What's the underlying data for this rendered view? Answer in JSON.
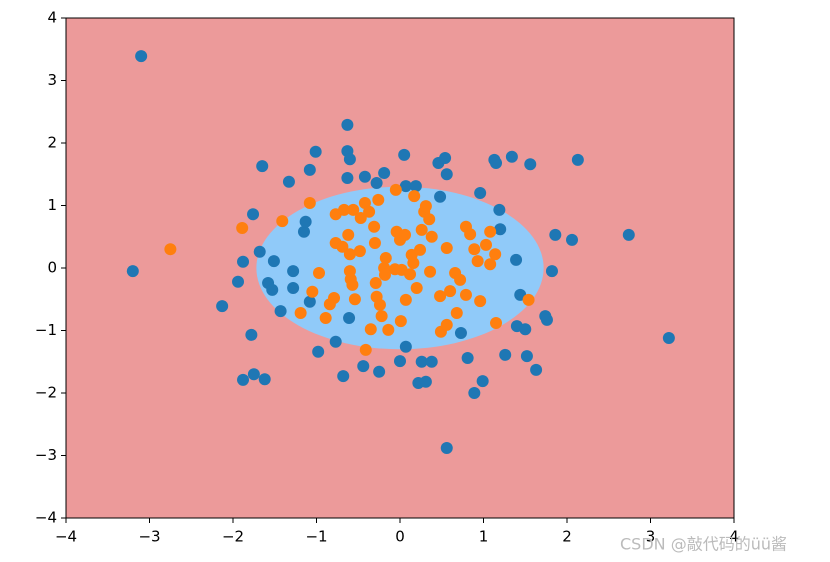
{
  "chart_data": {
    "type": "scatter",
    "xlim": [
      -4,
      4
    ],
    "ylim": [
      -4,
      4
    ],
    "xticks": [
      {
        "value": -4,
        "label": "−4"
      },
      {
        "value": -3,
        "label": "−3"
      },
      {
        "value": -2,
        "label": "−2"
      },
      {
        "value": -1,
        "label": "−1"
      },
      0,
      1,
      2,
      3,
      4
    ],
    "yticks": [
      {
        "value": -4,
        "label": "−4"
      },
      {
        "value": -3,
        "label": "−3"
      },
      {
        "value": -2,
        "label": "−2"
      },
      {
        "value": -1,
        "label": "−1"
      },
      0,
      1,
      2,
      3,
      4
    ],
    "background_color": "#ec9a9a",
    "boundary": {
      "cx": 0,
      "cy": 0,
      "rx": 1.72,
      "ry": 1.3,
      "color": "#90caf9"
    },
    "series": [
      {
        "color": "#1f77b4",
        "x": [
          -3.1,
          -3.2,
          -2.13,
          -1.94,
          -1.88,
          -1.76,
          -1.65,
          -1.68,
          -1.58,
          -1.53,
          -1.51,
          -1.43,
          -1.78,
          -1.88,
          -1.75,
          -1.62,
          -1.33,
          -1.28,
          -1.28,
          -1.15,
          -1.13,
          -1.08,
          -1.01,
          -1.08,
          -0.98,
          -0.77,
          -0.68,
          -0.63,
          -0.63,
          -0.6,
          -0.63,
          -0.61,
          -0.42,
          -0.28,
          -0.19,
          -0.44,
          -0.25,
          0.05,
          0.07,
          0.19,
          0.07,
          0.0,
          0.26,
          0.38,
          0.22,
          0.31,
          0.46,
          0.54,
          0.56,
          0.48,
          0.56,
          0.73,
          0.81,
          0.89,
          0.99,
          0.96,
          1.13,
          1.15,
          1.19,
          1.2,
          1.34,
          1.39,
          1.44,
          1.4,
          1.5,
          1.26,
          1.52,
          1.63,
          1.56,
          1.74,
          1.76,
          1.82,
          1.86,
          2.06,
          2.13,
          2.74,
          3.22
        ],
        "values": [
          3.39,
          -0.05,
          -0.61,
          -0.22,
          0.1,
          0.86,
          1.63,
          0.26,
          -0.24,
          -0.35,
          0.11,
          -0.69,
          -1.07,
          -1.79,
          -1.7,
          -1.78,
          1.38,
          -0.05,
          -0.32,
          0.58,
          0.74,
          1.57,
          1.86,
          -0.54,
          -1.34,
          -1.18,
          -1.73,
          2.29,
          1.87,
          1.74,
          1.44,
          -0.8,
          1.46,
          1.36,
          1.52,
          -1.57,
          -1.66,
          1.81,
          1.31,
          1.31,
          -1.26,
          -1.49,
          -1.5,
          -1.5,
          -1.84,
          -1.82,
          1.68,
          1.76,
          1.5,
          1.14,
          -2.88,
          -1.04,
          -1.44,
          -2.0,
          -1.81,
          1.2,
          1.73,
          1.68,
          0.93,
          0.62,
          1.78,
          0.13,
          -0.43,
          -0.93,
          -0.98,
          -1.39,
          -1.41,
          -1.63,
          1.66,
          -0.77,
          -0.83,
          -0.05,
          0.53,
          0.45,
          1.73,
          0.53,
          -1.12
        ]
      },
      {
        "color": "#ff7f0e",
        "x": [
          -2.75,
          -1.89,
          -1.41,
          -1.19,
          -1.08,
          -1.05,
          -0.97,
          -0.89,
          -0.84,
          -0.79,
          -0.77,
          -0.77,
          -0.69,
          -0.67,
          -0.6,
          -0.6,
          -0.59,
          -0.56,
          -0.54,
          -0.48,
          -0.47,
          -0.42,
          -0.41,
          -0.37,
          -0.35,
          -0.31,
          -0.3,
          -0.29,
          -0.28,
          -0.26,
          -0.24,
          -0.22,
          -0.19,
          -0.17,
          -0.14,
          -0.06,
          -0.05,
          -0.04,
          0.0,
          0.01,
          0.02,
          0.06,
          0.07,
          0.12,
          0.14,
          0.16,
          0.17,
          0.2,
          0.24,
          0.26,
          0.29,
          0.31,
          0.35,
          0.36,
          0.38,
          0.48,
          0.49,
          0.56,
          0.56,
          0.6,
          0.66,
          0.68,
          0.72,
          0.79,
          0.79,
          0.84,
          0.89,
          0.93,
          0.96,
          1.03,
          1.08,
          1.08,
          1.14,
          1.15,
          1.54,
          -0.62,
          -0.57,
          -0.18
        ],
        "values": [
          0.3,
          0.64,
          0.75,
          -0.72,
          1.04,
          -0.38,
          -0.08,
          -0.8,
          -0.58,
          -0.48,
          0.86,
          0.4,
          0.34,
          0.93,
          0.22,
          -0.05,
          -0.18,
          0.93,
          -0.5,
          0.27,
          0.8,
          1.04,
          -1.31,
          0.9,
          -0.98,
          0.66,
          0.4,
          -0.24,
          -0.46,
          1.09,
          -0.59,
          -0.77,
          0.0,
          0.16,
          -0.99,
          -0.02,
          1.25,
          0.58,
          0.45,
          -0.85,
          -0.03,
          0.53,
          -0.51,
          -0.1,
          0.21,
          0.08,
          1.15,
          -0.32,
          0.29,
          0.61,
          0.9,
          0.99,
          0.78,
          -0.06,
          0.5,
          -0.45,
          -1.02,
          0.32,
          -0.91,
          -0.37,
          -0.08,
          -0.72,
          -0.19,
          0.66,
          -0.43,
          0.54,
          0.3,
          0.11,
          -0.53,
          0.37,
          0.58,
          0.06,
          0.22,
          -0.88,
          -0.51,
          0.53,
          -0.27,
          -0.11
        ]
      }
    ],
    "watermark": "CSDN @敲代码的üü酱"
  }
}
